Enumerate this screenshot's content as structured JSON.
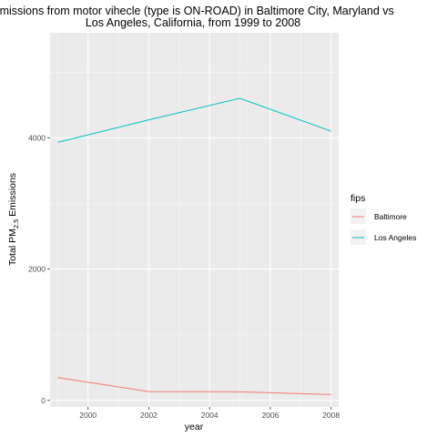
{
  "chart_data": {
    "type": "line",
    "title": "Emissions from motor vihecle (type is ON-ROAD) in Baltimore City, Maryland vs Los Angeles, California, from 1999 to 2008",
    "title_lines": [
      "Emissions from motor vihecle (type is ON-ROAD) in Baltimore City, Maryland vs",
      "Los Angeles, California, from 1999 to 2008"
    ],
    "xlabel": "year",
    "ylabel_main": "Total PM",
    "ylabel_sub": "2.5",
    "ylabel_end": " Emissions",
    "x": [
      1999,
      2002,
      2005,
      2008
    ],
    "xlim": [
      1998.75,
      2008.25
    ],
    "ylim": [
      -100,
      5600
    ],
    "xticks": [
      2000,
      2002,
      2004,
      2006,
      2008
    ],
    "yticks": [
      0,
      2000,
      4000
    ],
    "grid": true,
    "legend_title": "fips",
    "legend_position": "right",
    "series": [
      {
        "name": "Baltimore",
        "color": "#F8766D",
        "values": [
          346.8,
          134.3,
          130.4,
          88.3
        ]
      },
      {
        "name": "Los Angeles",
        "color": "#00BFC4",
        "values": [
          3931.1,
          4274.0,
          4601.4,
          4101.3
        ]
      }
    ]
  }
}
